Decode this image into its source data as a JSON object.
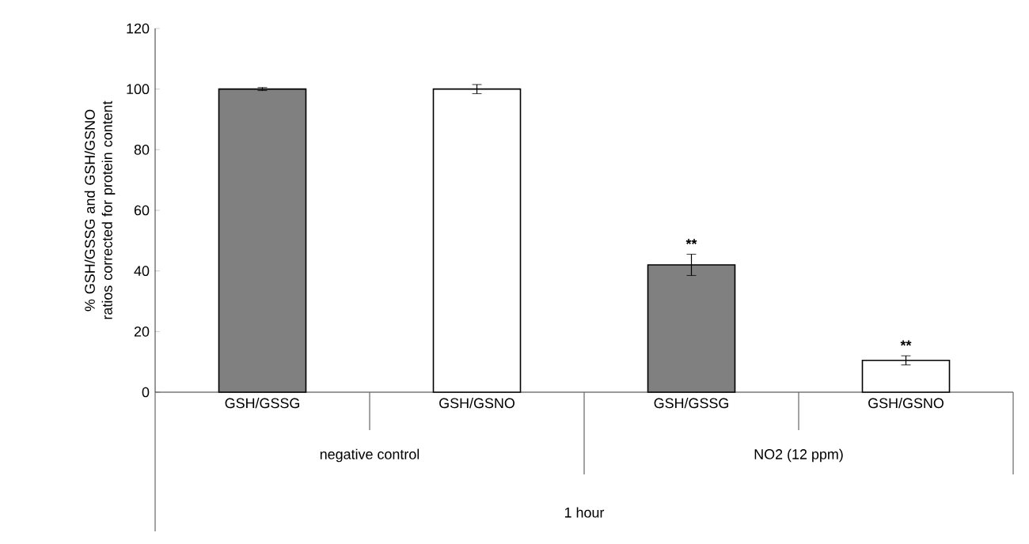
{
  "chart_data": {
    "type": "bar",
    "ylabel": "% GSH/GSSG and GSH/GSNO ratios corrected for protein content",
    "categories": [
      "GSH/GSSG",
      "GSH/GSNO",
      "GSH/GSSG",
      "GSH/GSNO"
    ],
    "values": [
      100,
      100,
      42,
      10.5
    ],
    "colors": [
      "#808080",
      "#ffffff",
      "#808080",
      "#ffffff"
    ],
    "errors": [
      0.5,
      1.5,
      3.5,
      1.5
    ],
    "value_labels": [
      null,
      null,
      "**",
      "**"
    ],
    "annotations": [
      "negative control",
      "NO2 (12 ppm)",
      "1 hour"
    ],
    "ylim": [
      0,
      120
    ],
    "yticks": [
      0,
      20,
      40,
      60,
      80,
      100,
      120
    ],
    "grid": false
  }
}
